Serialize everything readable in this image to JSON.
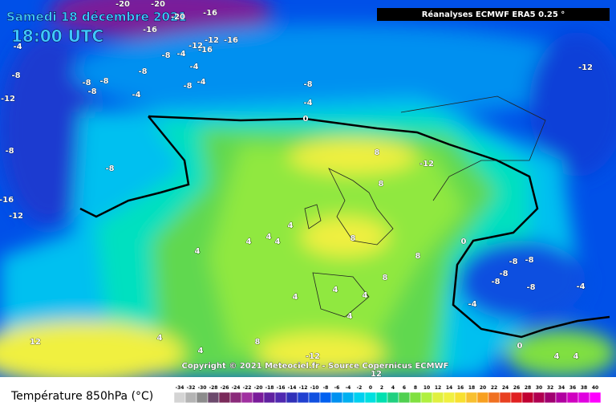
{
  "header": {
    "date": "Samedi 18 décembre 2021",
    "time": "18:00 UTC",
    "source": "Réanalyses ECMWF ERA5 0.25 °"
  },
  "copyright": "Copyright © 2021 Meteociel.fr - Source Copernicus ECMWF",
  "map_labels": [
    "-20",
    "-20",
    "-20",
    "-16",
    "-16",
    "-12",
    "-16",
    "-12",
    "-16",
    "-8",
    "-4",
    "-4",
    "-8",
    "-12",
    "-8",
    "-8",
    "-8",
    "-8",
    "-4",
    "-8",
    "-4",
    "-4",
    "-8",
    "-4",
    "0",
    "-12",
    "-8",
    "-8",
    "-16",
    "-12",
    "8",
    "-12",
    "8",
    "4",
    "4",
    "4",
    "4",
    "8",
    "0",
    "4",
    "8",
    "-8",
    "-8",
    "-8",
    "-8",
    "-8",
    "4",
    "8",
    "4",
    "-4",
    "-4",
    "4",
    "4",
    "4",
    "12",
    "8",
    "4",
    "0",
    "-12",
    "12",
    "4",
    "4"
  ],
  "legend": {
    "title": "Température 850hPa (°C)",
    "ticks": [
      -34,
      -32,
      -30,
      -28,
      -26,
      -24,
      -22,
      -20,
      -18,
      -16,
      -14,
      -12,
      -10,
      -8,
      -6,
      -4,
      -2,
      0,
      2,
      4,
      6,
      8,
      10,
      12,
      14,
      16,
      18,
      20,
      22,
      24,
      26,
      28,
      30,
      32,
      34,
      36,
      38,
      40
    ],
    "colors": [
      "#d4d4d4",
      "#b4b4b4",
      "#8c8c8c",
      "#6c4a6c",
      "#7a2a5a",
      "#8a2a7a",
      "#a030a0",
      "#7a1a9a",
      "#6020a0",
      "#5028b0",
      "#3030b8",
      "#2040d0",
      "#1050e0",
      "#0060f0",
      "#0090f0",
      "#00b0f0",
      "#00d0f0",
      "#00e0e0",
      "#00e0b0",
      "#20d080",
      "#50d050",
      "#80e040",
      "#b0f040",
      "#e0f040",
      "#f0f040",
      "#f8e030",
      "#f8c030",
      "#f8a020",
      "#f07020",
      "#e84020",
      "#e02020",
      "#c00030",
      "#b00050",
      "#a00070",
      "#b000a0",
      "#d000c0",
      "#e000e0",
      "#ff00ff"
    ]
  }
}
